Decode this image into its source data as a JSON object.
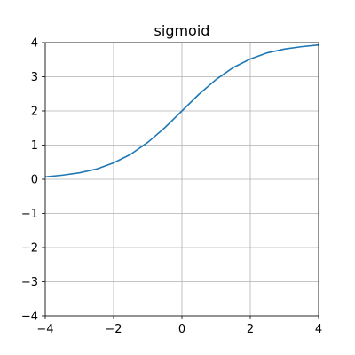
{
  "chart_data": {
    "type": "line",
    "title": "sigmoid",
    "xlabel": "",
    "ylabel": "",
    "xlim": [
      -4,
      4
    ],
    "ylim": [
      -4,
      4
    ],
    "xticks": [
      -4,
      -2,
      0,
      2,
      4
    ],
    "yticks": [
      -4,
      -3,
      -2,
      -1,
      0,
      1,
      2,
      3,
      4
    ],
    "xtick_labels": [
      "−4",
      "−2",
      "0",
      "2",
      "4"
    ],
    "ytick_labels": [
      "−4",
      "−3",
      "−2",
      "−1",
      "0",
      "1",
      "2",
      "3",
      "4"
    ],
    "grid": true,
    "series": [
      {
        "color": "#1f77b4",
        "x": [
          -4.0,
          -3.5,
          -3.0,
          -2.5,
          -2.0,
          -1.5,
          -1.0,
          -0.5,
          0.0,
          0.5,
          1.0,
          1.5,
          2.0,
          2.5,
          3.0,
          3.5,
          4.0
        ],
        "y": [
          0.07,
          0.12,
          0.19,
          0.3,
          0.48,
          0.73,
          1.08,
          1.51,
          2.0,
          2.49,
          2.92,
          3.27,
          3.52,
          3.7,
          3.81,
          3.88,
          3.93
        ]
      }
    ]
  }
}
